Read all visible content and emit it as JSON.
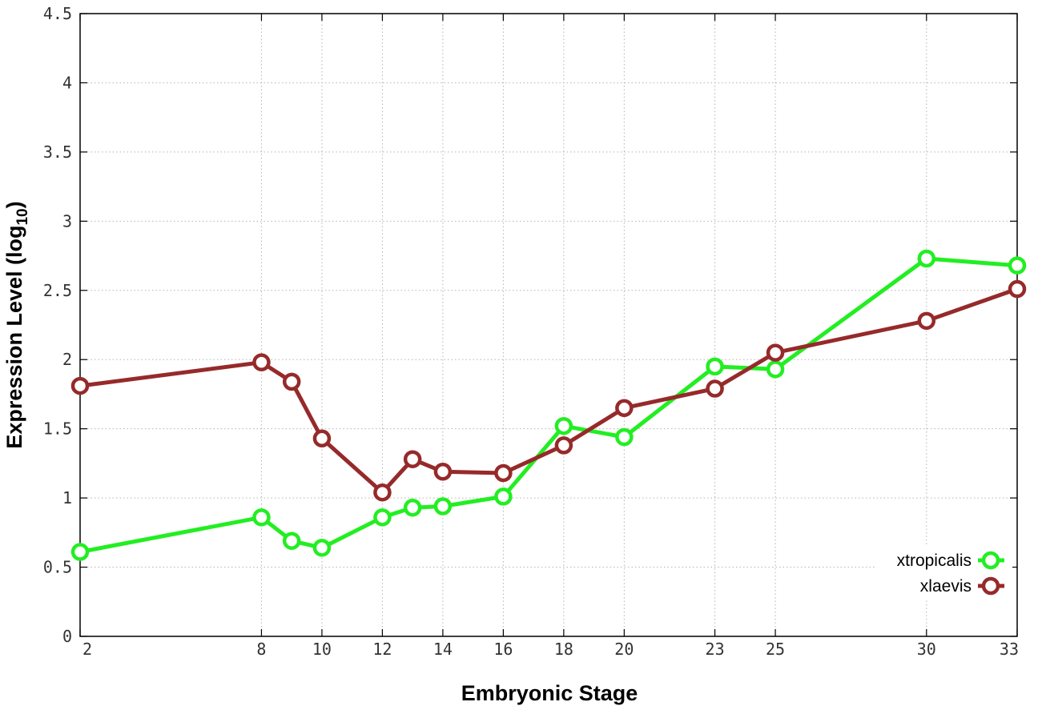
{
  "chart_data": {
    "type": "line",
    "xlabel": "Embryonic Stage",
    "ylabel_prefix": "Expression Level (log",
    "ylabel_subscript": "10",
    "ylabel_suffix": ")",
    "x_ticks": [
      2,
      8,
      10,
      12,
      14,
      16,
      18,
      20,
      23,
      25,
      30,
      33
    ],
    "y_ticks": [
      "0",
      "0.5",
      "1",
      "1.5",
      "2",
      "2.5",
      "3",
      "3.5",
      "4",
      "4.5"
    ],
    "xlim": [
      2,
      33
    ],
    "ylim": [
      0,
      4.5
    ],
    "grid": true,
    "legend_position": "bottom-right",
    "series": [
      {
        "name": "xtropicalis",
        "color": "#22ee22",
        "x": [
          2,
          8,
          9,
          10,
          12,
          13,
          14,
          16,
          18,
          20,
          23,
          25,
          30,
          33
        ],
        "y": [
          0.61,
          0.86,
          0.69,
          0.64,
          0.86,
          0.93,
          0.94,
          1.01,
          1.52,
          1.44,
          1.95,
          1.93,
          2.73,
          2.68
        ]
      },
      {
        "name": "xlaevis",
        "color": "#962a2a",
        "x": [
          2,
          8,
          9,
          10,
          12,
          13,
          14,
          16,
          18,
          20,
          23,
          25,
          30,
          33
        ],
        "y": [
          1.81,
          1.98,
          1.84,
          1.43,
          1.04,
          1.28,
          1.19,
          1.18,
          1.38,
          1.65,
          1.79,
          2.05,
          2.28,
          2.51
        ]
      }
    ]
  }
}
